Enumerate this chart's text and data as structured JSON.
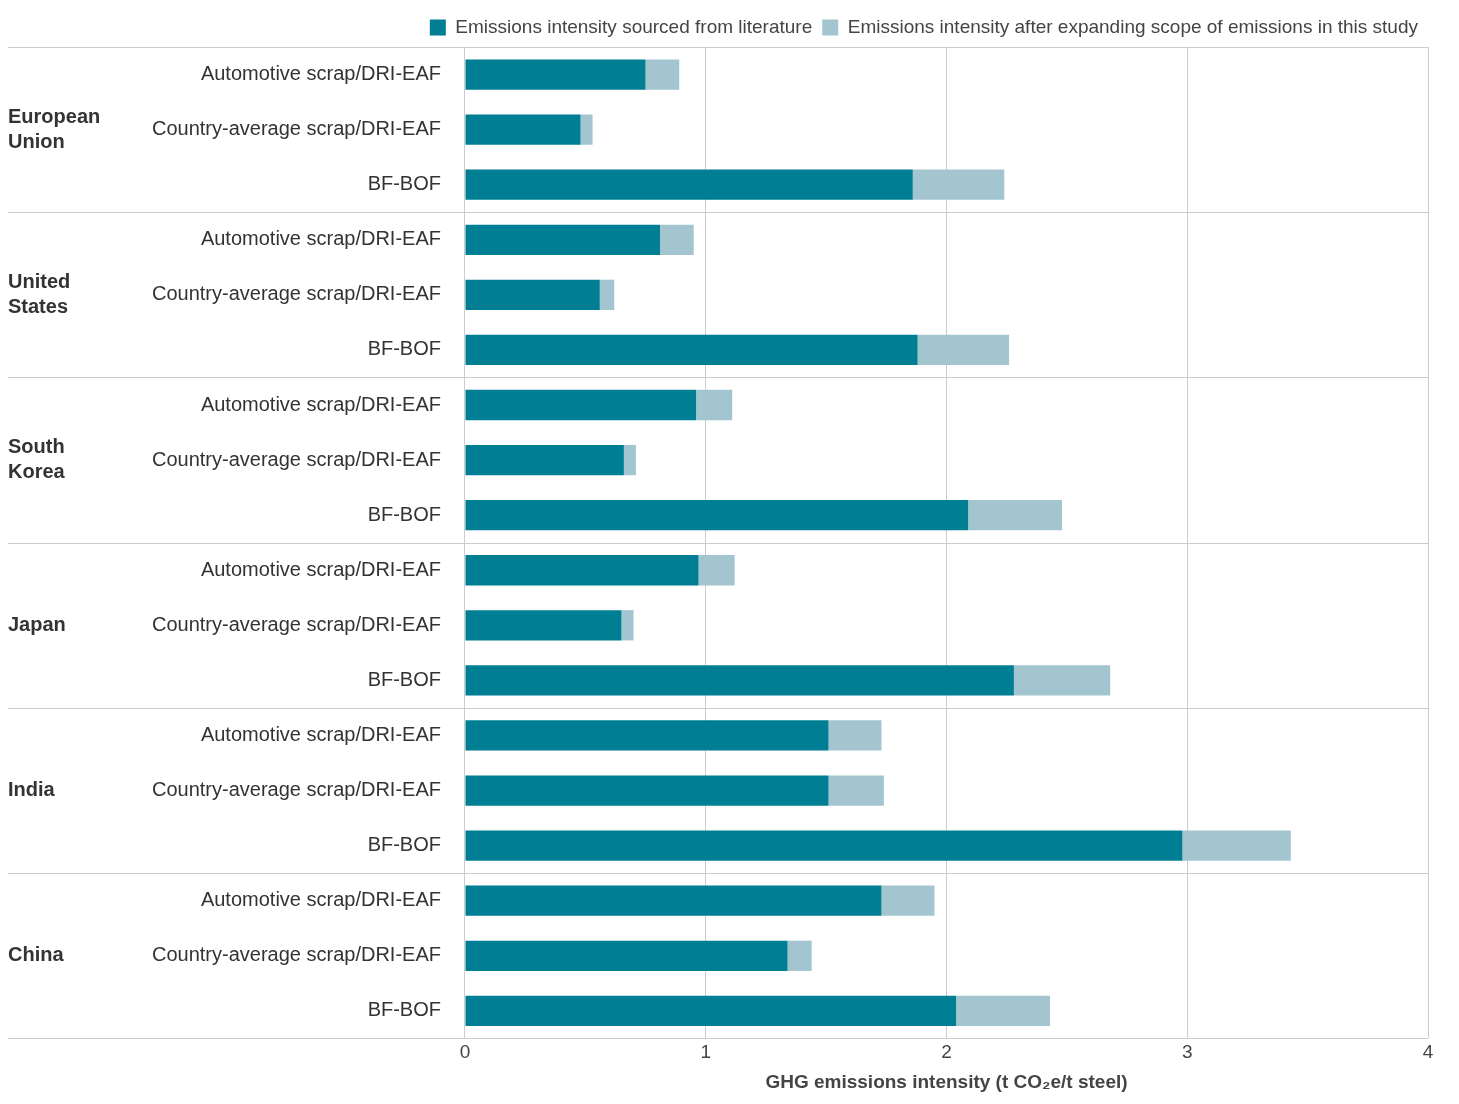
{
  "chart_data": {
    "type": "bar",
    "orientation": "horizontal",
    "stacked": true,
    "xlabel": "GHG emissions intensity (t CO₂e/t steel)",
    "categories": [
      "Automotive scrap/DRI-EAF",
      "Country-average scrap/DRI-EAF",
      "BF-BOF",
      "Automotive scrap/DRI-EAF",
      "Country-average scrap/DRI-EAF",
      "BF-BOF",
      "Automotive scrap/DRI-EAF",
      "Country-average scrap/DRI-EAF",
      "BF-BOF",
      "Automotive scrap/DRI-EAF",
      "Country-average scrap/DRI-EAF",
      "BF-BOF",
      "Automotive scrap/DRI-EAF",
      "Country-average scrap/DRI-EAF",
      "BF-BOF",
      "Automotive scrap/DRI-EAF",
      "Country-average scrap/DRI-EAF",
      "BF-BOF"
    ],
    "annotations": [
      "European Union",
      "United States",
      "South Korea",
      "Japan",
      "India",
      "China"
    ],
    "series": [
      {
        "name": "Emissions intensity sourced from literature",
        "color": "#007f94",
        "values": [
          0.75,
          0.48,
          1.86,
          0.81,
          0.56,
          1.88,
          0.96,
          0.66,
          2.09,
          0.97,
          0.65,
          2.28,
          1.51,
          1.51,
          2.98,
          1.73,
          1.34,
          2.04
        ]
      },
      {
        "name": "Emissions intensity after expanding scope of emissions in this study",
        "color": "#a3c5d0",
        "values": [
          0.14,
          0.05,
          0.38,
          0.14,
          0.06,
          0.38,
          0.15,
          0.05,
          0.39,
          0.15,
          0.05,
          0.4,
          0.22,
          0.23,
          0.45,
          0.22,
          0.1,
          0.39
        ]
      }
    ],
    "xlim": [
      0,
      4
    ],
    "xticks": [
      0,
      1,
      2,
      3,
      4
    ],
    "grid": "x",
    "legend": "top right"
  }
}
